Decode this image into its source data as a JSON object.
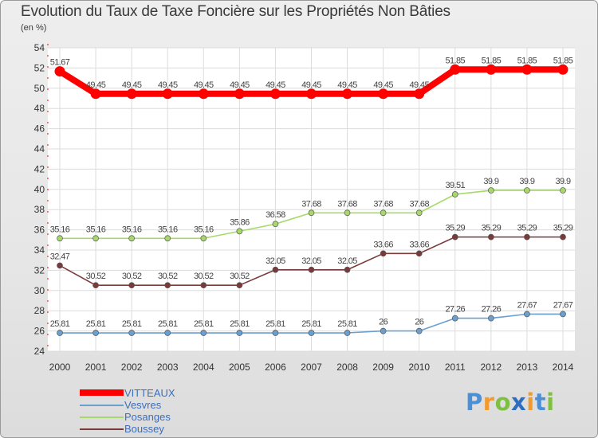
{
  "header": {
    "title": "Evolution du Taux de Taxe Foncière sur les Propriétés Non Bâties",
    "unit": "(en %)"
  },
  "logo": {
    "letters": [
      "P",
      "r",
      "o",
      "x",
      "i",
      "t",
      "i"
    ],
    "colors": [
      "#4b8fd6",
      "#f29a2e",
      "#7ec042",
      "#2e6ec0",
      "#f29a2e",
      "#4b8fd6",
      "#7ec042"
    ]
  },
  "chart_data": {
    "type": "line",
    "title": "Evolution du Taux de Taxe Foncière sur les Propriétés Non Bâties",
    "ylabel": "(en %)",
    "x": [
      "2000",
      "2001",
      "2002",
      "2003",
      "2004",
      "2005",
      "2006",
      "2007",
      "2008",
      "2009",
      "2010",
      "2011",
      "2012",
      "2013",
      "2014"
    ],
    "ylim": [
      24,
      54
    ],
    "yticks": [
      24,
      26,
      28,
      30,
      32,
      34,
      36,
      38,
      40,
      42,
      44,
      46,
      48,
      50,
      52,
      54
    ],
    "grid": true,
    "legend_position": "bottom-left",
    "series": [
      {
        "name": "VITTEAUX",
        "color": "#ff0000",
        "values": [
          51.67,
          49.45,
          49.45,
          49.45,
          49.45,
          49.45,
          49.45,
          49.45,
          49.45,
          49.45,
          49.45,
          51.85,
          51.85,
          51.85,
          51.85
        ],
        "labels": [
          "51.67",
          "49.45",
          "49.45",
          "49.45",
          "49.45",
          "49.45",
          "49.45",
          "49.45",
          "49.45",
          "49.45",
          "49.45",
          "51.85",
          "51.85",
          "51.85",
          "51.85"
        ]
      },
      {
        "name": "Vesvres",
        "color": "#6a9fcf",
        "values": [
          25.81,
          25.81,
          25.81,
          25.81,
          25.81,
          25.81,
          25.81,
          25.81,
          25.81,
          26,
          26,
          27.26,
          27.26,
          27.67,
          27.67
        ],
        "labels": [
          "25.81",
          "25.81",
          "25.81",
          "25.81",
          "25.81",
          "25.81",
          "25.81",
          "25.81",
          "25.81",
          "26",
          "26",
          "27.26",
          "27.26",
          "27.67",
          "27.67"
        ]
      },
      {
        "name": "Posanges",
        "color": "#a6d96a",
        "values": [
          35.16,
          35.16,
          35.16,
          35.16,
          35.16,
          35.86,
          36.58,
          37.68,
          37.68,
          37.68,
          37.68,
          39.51,
          39.9,
          39.9,
          39.9
        ],
        "labels": [
          "35.16",
          "35.16",
          "35.16",
          "35.16",
          "35.16",
          "35.86",
          "36.58",
          "37.68",
          "37.68",
          "37.68",
          "37.68",
          "39.51",
          "39.9",
          "39.9",
          "39.9"
        ]
      },
      {
        "name": "Boussey",
        "color": "#7a3a3a",
        "values": [
          32.47,
          30.52,
          30.52,
          30.52,
          30.52,
          30.52,
          32.05,
          32.05,
          32.05,
          33.66,
          33.66,
          35.29,
          35.29,
          35.29,
          35.29
        ],
        "labels": [
          "32.47",
          "30.52",
          "30.52",
          "30.52",
          "30.52",
          "30.52",
          "32.05",
          "32.05",
          "32.05",
          "33.66",
          "33.66",
          "35.29",
          "35.29",
          "35.29",
          "35.29"
        ]
      }
    ]
  }
}
